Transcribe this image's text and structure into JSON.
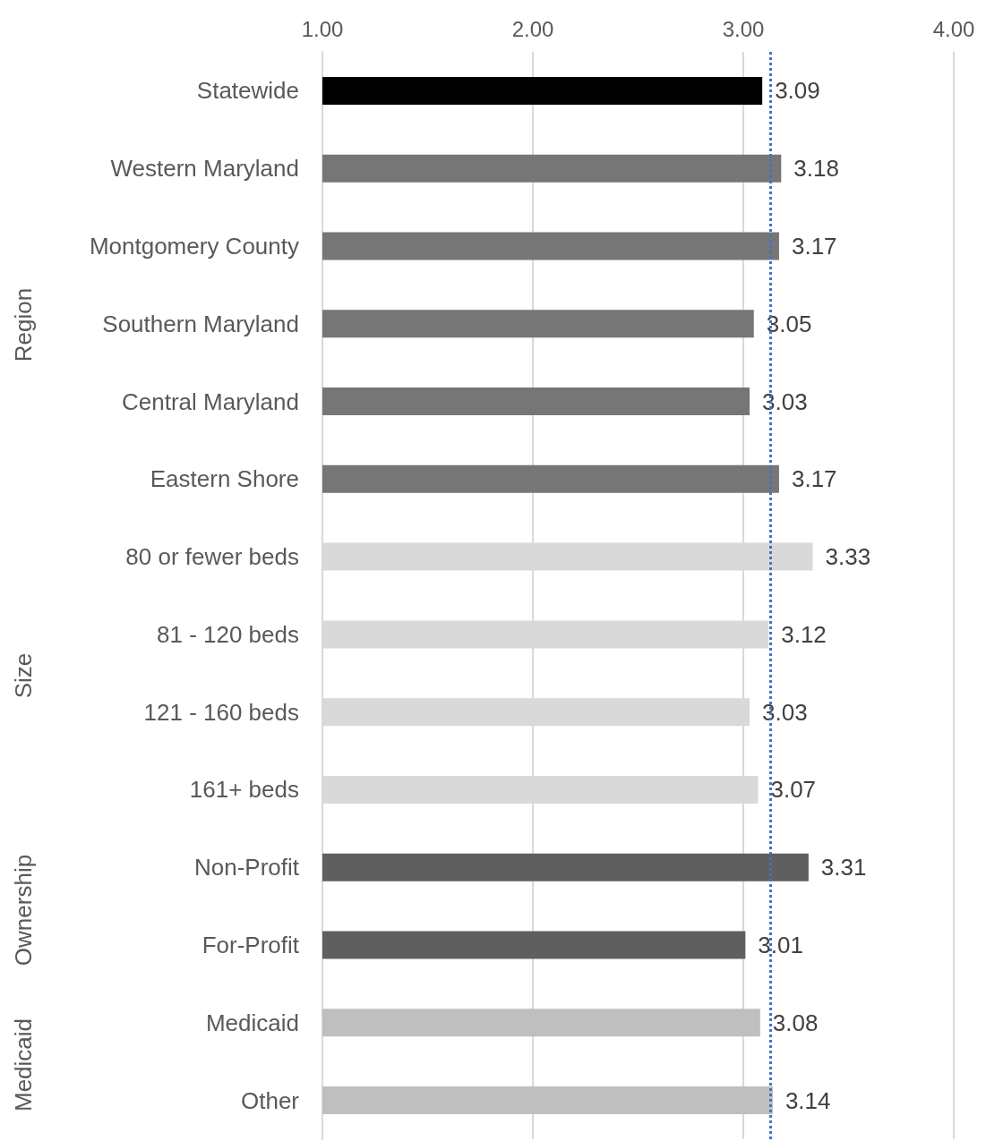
{
  "chart_data": {
    "type": "bar",
    "orientation": "horizontal",
    "categories": [
      "Statewide",
      "Western Maryland",
      "Montgomery County",
      "Southern Maryland",
      "Central Maryland",
      "Eastern Shore",
      "80 or fewer beds",
      "81 - 120 beds",
      "121 - 160 beds",
      "161+ beds",
      "Non-Profit",
      "For-Profit",
      "Medicaid",
      "Other"
    ],
    "values": [
      3.09,
      3.18,
      3.17,
      3.05,
      3.03,
      3.17,
      3.33,
      3.12,
      3.03,
      3.07,
      3.31,
      3.01,
      3.08,
      3.14
    ],
    "colors": [
      "#000000",
      "#767676",
      "#767676",
      "#767676",
      "#767676",
      "#767676",
      "#d9d9d9",
      "#d9d9d9",
      "#d9d9d9",
      "#d9d9d9",
      "#5f5f5f",
      "#5f5f5f",
      "#bfbfbf",
      "#bfbfbf"
    ],
    "xlim": [
      1,
      4
    ],
    "xticks": [
      {
        "value": 1,
        "label": "1.00"
      },
      {
        "value": 2,
        "label": "2.00"
      },
      {
        "value": 3,
        "label": "3.00"
      },
      {
        "value": 4,
        "label": "4.00"
      }
    ],
    "grid": "x",
    "data_labels": true,
    "ref_lines": [
      {
        "axis": "x",
        "value": 3.13,
        "color": "#4472c4",
        "line_style": "dotted"
      }
    ],
    "annotations": [
      "Region",
      "Size",
      "Ownership",
      "Medicaid"
    ]
  }
}
